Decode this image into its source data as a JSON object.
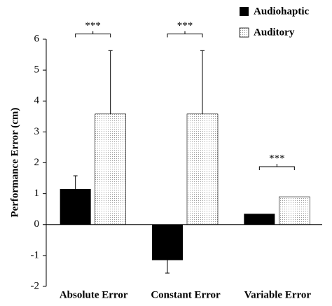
{
  "chart_data": {
    "type": "bar",
    "y_label": "Performance Error (cm)",
    "categories": [
      "Absolute Error",
      "Constant Error",
      "Variable Error"
    ],
    "series": [
      {
        "name": "Audiohaptic",
        "color": "#000000",
        "values": [
          1.15,
          -1.15,
          0.35
        ],
        "errors": [
          0.43,
          0.42,
          null
        ]
      },
      {
        "name": "Auditory",
        "color": "#f2f2f2",
        "pattern": "dots",
        "values": [
          3.58,
          3.58,
          0.9
        ],
        "errors": [
          2.05,
          2.05,
          null
        ]
      }
    ],
    "ylim": [
      -2,
      6
    ],
    "yticks": [
      -2,
      -1,
      0,
      1,
      2,
      3,
      4,
      5,
      6
    ],
    "legend": "top-right",
    "annotations": [
      "***",
      "***",
      "***"
    ]
  }
}
